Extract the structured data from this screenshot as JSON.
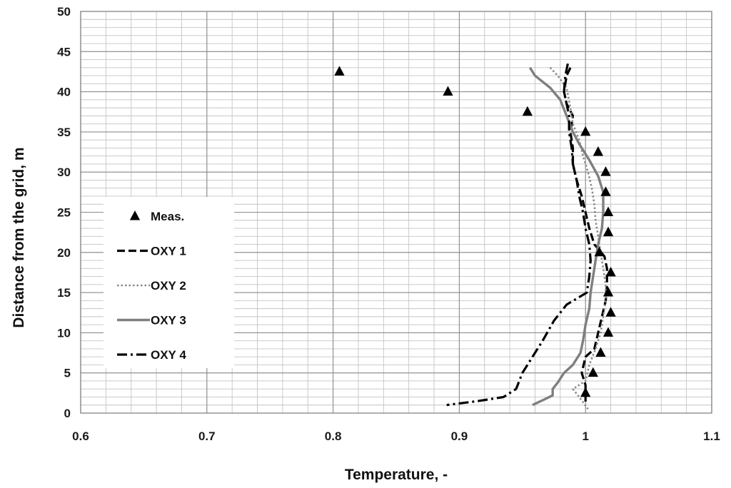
{
  "chart_data": {
    "type": "line",
    "title": "",
    "xlabel": "Temperature, -",
    "ylabel": "Distance from the grid, m",
    "xlim": [
      0.6,
      1.1
    ],
    "ylim": [
      0,
      50
    ],
    "x_ticks": [
      "0.6",
      "0.7",
      "0.8",
      "0.9",
      "1",
      "1.1"
    ],
    "y_ticks": [
      "0",
      "5",
      "10",
      "15",
      "20",
      "25",
      "30",
      "35",
      "40",
      "45",
      "50"
    ],
    "x_minor_step": 0.02,
    "y_minor_step": 1,
    "grid": true,
    "legend_position": "left",
    "series": [
      {
        "name": "Meas.",
        "style": "markers-triangle",
        "color": "#000000",
        "points": [
          [
            0.805,
            42.5
          ],
          [
            0.891,
            40.0
          ],
          [
            0.954,
            37.5
          ],
          [
            1.0,
            35.0
          ],
          [
            1.01,
            32.5
          ],
          [
            1.016,
            30.0
          ],
          [
            1.016,
            27.5
          ],
          [
            1.018,
            25.0
          ],
          [
            1.018,
            22.5
          ],
          [
            1.011,
            20.0
          ],
          [
            1.02,
            17.5
          ],
          [
            1.018,
            15.0
          ],
          [
            1.02,
            12.5
          ],
          [
            1.018,
            10.0
          ],
          [
            1.012,
            7.5
          ],
          [
            1.006,
            5.0
          ],
          [
            1.0,
            2.5
          ]
        ]
      },
      {
        "name": "OXY 1",
        "style": "dashed",
        "color": "#000000",
        "points": [
          [
            0.988,
            43
          ],
          [
            0.985,
            42
          ],
          [
            0.983,
            40
          ],
          [
            0.985,
            38.5
          ],
          [
            0.99,
            37
          ],
          [
            0.988,
            35
          ],
          [
            0.99,
            33
          ],
          [
            0.99,
            31
          ],
          [
            0.993,
            29
          ],
          [
            0.997,
            27
          ],
          [
            1.0,
            25
          ],
          [
            1.003,
            23
          ],
          [
            1.007,
            21
          ],
          [
            1.015,
            19.5
          ],
          [
            1.017,
            18
          ],
          [
            1.017,
            16
          ],
          [
            1.016,
            14
          ],
          [
            1.013,
            12
          ],
          [
            1.01,
            10
          ],
          [
            1.007,
            8
          ],
          [
            1.0,
            7
          ],
          [
            0.997,
            5
          ],
          [
            1.0,
            3.5
          ],
          [
            1.0,
            1
          ]
        ]
      },
      {
        "name": "OXY 2",
        "style": "dotted",
        "color": "#8a8a8a",
        "points": [
          [
            0.972,
            43
          ],
          [
            0.978,
            42
          ],
          [
            0.985,
            40.5
          ],
          [
            0.988,
            38
          ],
          [
            0.99,
            36
          ],
          [
            0.995,
            34
          ],
          [
            0.998,
            32
          ],
          [
            1.002,
            30
          ],
          [
            1.005,
            28
          ],
          [
            1.007,
            26
          ],
          [
            1.008,
            24
          ],
          [
            1.01,
            22
          ],
          [
            1.012,
            20
          ],
          [
            1.014,
            18
          ],
          [
            1.016,
            16
          ],
          [
            1.016,
            14
          ],
          [
            1.014,
            12
          ],
          [
            1.012,
            10
          ],
          [
            1.008,
            8
          ],
          [
            1.003,
            6
          ],
          [
            1.0,
            4
          ],
          [
            0.99,
            3
          ],
          [
            0.995,
            2
          ],
          [
            1.002,
            0.5
          ]
        ]
      },
      {
        "name": "OXY 3",
        "style": "solid",
        "color": "#7f7f7f",
        "points": [
          [
            0.956,
            43
          ],
          [
            0.96,
            42
          ],
          [
            0.972,
            40.5
          ],
          [
            0.98,
            39
          ],
          [
            0.985,
            37
          ],
          [
            0.99,
            35
          ],
          [
            0.995,
            33.5
          ],
          [
            1.003,
            31.5
          ],
          [
            1.01,
            29.5
          ],
          [
            1.014,
            27.5
          ],
          [
            1.014,
            25
          ],
          [
            1.013,
            23
          ],
          [
            1.01,
            21
          ],
          [
            1.008,
            19
          ],
          [
            1.006,
            17
          ],
          [
            1.004,
            15
          ],
          [
            1.003,
            13
          ],
          [
            1.0,
            11
          ],
          [
            0.998,
            9
          ],
          [
            0.996,
            7.5
          ],
          [
            0.99,
            6
          ],
          [
            0.983,
            5
          ],
          [
            0.978,
            3.8
          ],
          [
            0.974,
            3
          ],
          [
            0.974,
            2.2
          ],
          [
            0.966,
            1.6
          ],
          [
            0.958,
            1.0
          ]
        ]
      },
      {
        "name": "OXY 4",
        "style": "dash-dot",
        "color": "#000000",
        "points": [
          [
            0.986,
            43.5
          ],
          [
            0.984,
            42
          ],
          [
            0.983,
            40
          ],
          [
            0.985,
            38.5
          ],
          [
            0.987,
            37
          ],
          [
            0.987,
            35
          ],
          [
            0.989,
            33
          ],
          [
            0.99,
            31
          ],
          [
            0.993,
            29
          ],
          [
            0.995,
            27
          ],
          [
            0.998,
            25
          ],
          [
            1.0,
            23
          ],
          [
            1.003,
            21
          ],
          [
            1.004,
            19
          ],
          [
            1.003,
            17
          ],
          [
            1.001,
            15
          ],
          [
            0.985,
            13.5
          ],
          [
            0.975,
            11.5
          ],
          [
            0.966,
            9
          ],
          [
            0.958,
            7
          ],
          [
            0.95,
            5
          ],
          [
            0.945,
            3
          ],
          [
            0.935,
            2
          ],
          [
            0.915,
            1.5
          ],
          [
            0.89,
            1.0
          ]
        ]
      }
    ]
  }
}
